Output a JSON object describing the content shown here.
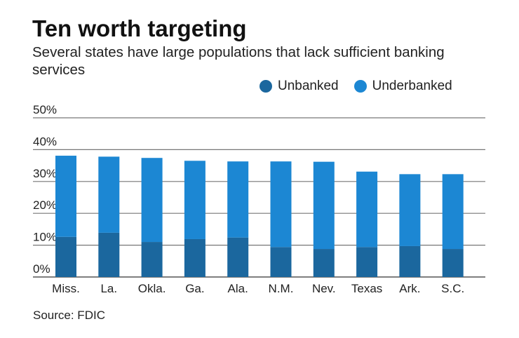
{
  "title": "Ten worth targeting",
  "subtitle": "Several states have large populations that lack sufficient banking services",
  "source": "Source: FDIC",
  "chart_data": {
    "type": "bar",
    "stacked": true,
    "categories": [
      "Miss.",
      "La.",
      "Okla.",
      "Ga.",
      "Ala.",
      "N.M.",
      "Nev.",
      "Texas",
      "Ark.",
      "S.C."
    ],
    "series": [
      {
        "name": "Unbanked",
        "color": "#1b679e",
        "values": [
          12.6,
          13.9,
          11.0,
          11.9,
          12.4,
          9.4,
          8.8,
          9.4,
          9.7,
          8.8
        ]
      },
      {
        "name": "Underbanked",
        "color": "#1c87d3",
        "values": [
          25.5,
          23.9,
          26.4,
          24.6,
          23.9,
          26.9,
          27.4,
          23.7,
          22.6,
          23.5
        ]
      }
    ],
    "ylim": [
      0,
      50
    ],
    "yticks": [
      "0%",
      "10%",
      "20%",
      "30%",
      "40%",
      "50%"
    ],
    "ytick_values": [
      0,
      10,
      20,
      30,
      40,
      50
    ],
    "grid": true,
    "legend_position": "top-right"
  }
}
